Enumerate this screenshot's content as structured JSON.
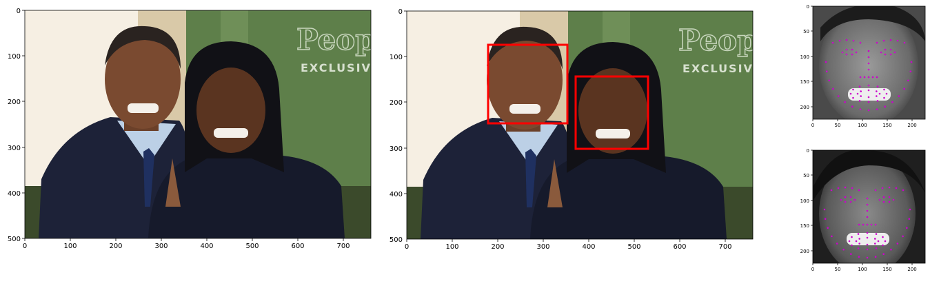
{
  "panels": {
    "original": {
      "xticks": [
        "0",
        "100",
        "200",
        "300",
        "400",
        "500",
        "600",
        "700"
      ],
      "yticks": [
        "0",
        "100",
        "200",
        "300",
        "400",
        "500"
      ],
      "watermark_brand": "People",
      "watermark_text": "EXCLUSIV"
    },
    "detected": {
      "xticks": [
        "0",
        "100",
        "200",
        "300",
        "400",
        "500",
        "600",
        "700"
      ],
      "yticks": [
        "0",
        "100",
        "200",
        "300",
        "400",
        "500"
      ],
      "watermark_brand": "People",
      "watermark_text": "EXCLUSIV",
      "box_color": "#ff0000"
    },
    "face1": {
      "xticks": [
        "0",
        "50",
        "100",
        "150",
        "200"
      ],
      "yticks": [
        "0",
        "50",
        "100",
        "150",
        "200"
      ],
      "landmark_color": "#cc00cc"
    },
    "face2": {
      "xticks": [
        "0",
        "50",
        "100",
        "150",
        "200"
      ],
      "yticks": [
        "0",
        "50",
        "100",
        "150",
        "200"
      ],
      "landmark_color": "#cc00cc"
    }
  },
  "colors": {
    "bg_green": "#5e7f4a",
    "bg_cream": "#f6efe3",
    "suit": "#1d2238",
    "dress": "#161a2b",
    "skin_dark": "#5a3420",
    "skin_light": "#8a5a3c"
  }
}
